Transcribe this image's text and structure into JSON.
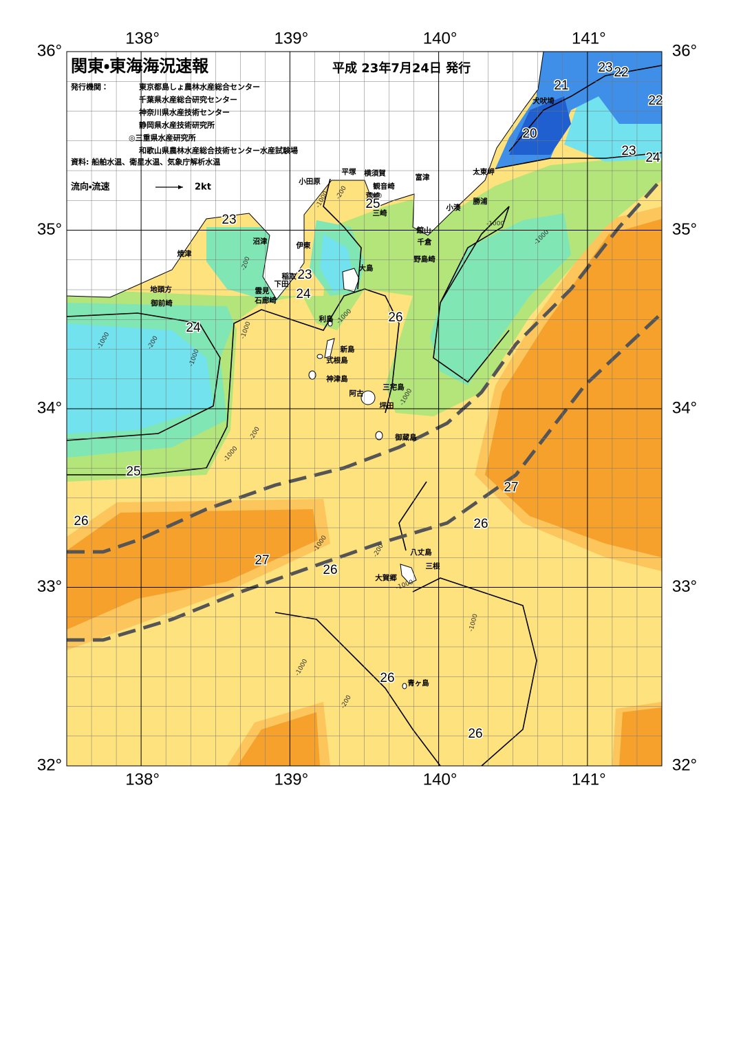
{
  "header": {
    "title": "関東・東海海況速報",
    "date": "平成 23年7月24日 発行",
    "issuer_label": "発行機関：",
    "issuers": [
      "東京都島しょ農林水産総合センター",
      "千葉県水産総合研究センター",
      "神奈川県水産技術センター",
      "静岡県水産技術研究所",
      "◎三重県水産研究所",
      "和歌山県農林水産総合技術センター水産試験場"
    ],
    "sources": "資料: 船舶水温、衛星水温、気象庁解析水温",
    "current_legend": {
      "label": "流向・流速",
      "speed": "2kt"
    }
  },
  "map": {
    "lon_ticks": [
      {
        "value": 138,
        "label": "138°"
      },
      {
        "value": 139,
        "label": "139°"
      },
      {
        "value": 140,
        "label": "140°"
      },
      {
        "value": 141,
        "label": "141°"
      }
    ],
    "lat_ticks": [
      {
        "value": 36,
        "label": "36°"
      },
      {
        "value": 35,
        "label": "35°"
      },
      {
        "value": 34,
        "label": "34°"
      },
      {
        "value": 33,
        "label": "33°"
      },
      {
        "value": 32,
        "label": "32°"
      }
    ],
    "places": [
      "犬吠埼",
      "太東岬",
      "勝浦",
      "小湊",
      "館山",
      "千倉",
      "野島崎",
      "富津",
      "観音崎",
      "横須賀",
      "荒崎",
      "三崎",
      "平塚",
      "小田原",
      "沼津",
      "伊東",
      "焼津",
      "稲取",
      "下田",
      "雲見",
      "石廊崎",
      "大島",
      "地頭方",
      "御前崎",
      "利島",
      "新島",
      "式根島",
      "神津島",
      "三宅島",
      "阿古",
      "坪田",
      "御蔵島",
      "八丈島",
      "三根",
      "大賀郷",
      "青ヶ島"
    ],
    "isotherm_labels": [
      23,
      23,
      24,
      25,
      24,
      26,
      25,
      26,
      27,
      26,
      27,
      26,
      26,
      26,
      20,
      21,
      22,
      23,
      22,
      23,
      24
    ],
    "depth_labels": [
      "-1000",
      "-200",
      "-200",
      "-1000",
      "-200",
      "-1000",
      "-200",
      "-1000",
      "-200",
      "-1000",
      "-1000",
      "-1000",
      "-1000",
      "-1000",
      "-200",
      "-1000",
      "-1000",
      "-200",
      "-1000",
      "-1000"
    ]
  }
}
